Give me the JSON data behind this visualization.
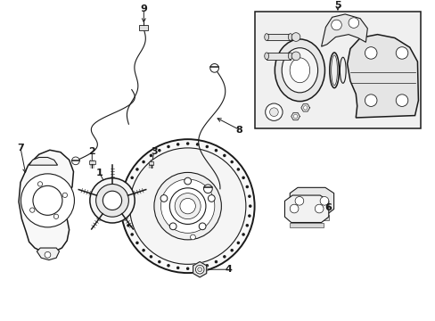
{
  "bg_color": "#ffffff",
  "line_color": "#1a1a1a",
  "fig_w": 4.89,
  "fig_h": 3.6,
  "dpi": 100,
  "xmin": 0,
  "xmax": 10,
  "ymin": 0,
  "ymax": 7.35
}
